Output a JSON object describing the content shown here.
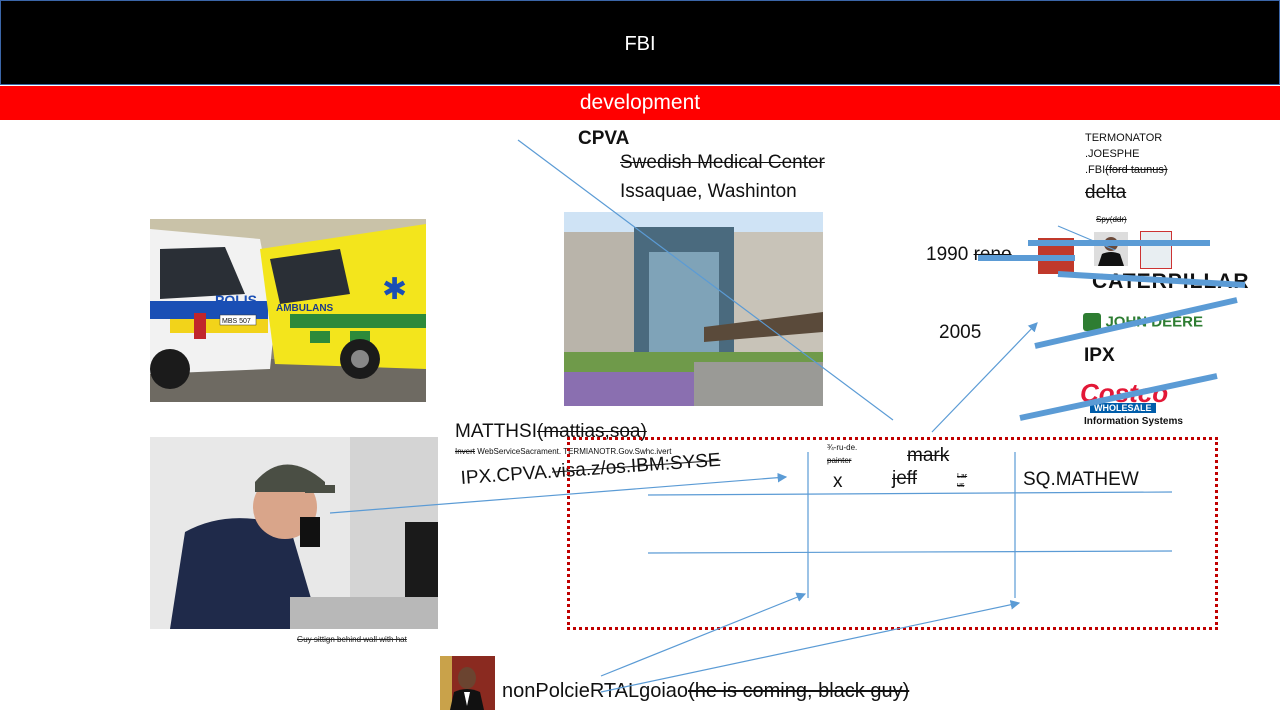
{
  "header": {
    "title": "FBI"
  },
  "subheader": {
    "title": "development"
  },
  "hospital": {
    "cpva_label": "CPVA",
    "name": "Swedish Medical Center",
    "location": "Issaquae, Washinton"
  },
  "photos": {
    "police_van": {
      "polis_text": "POLIS",
      "ambulans_text": "AMBULANS",
      "plate": "MBS 507"
    },
    "dispatcher": {
      "caption": "Guy sittign behind wall with hat"
    },
    "avatar_label": "nonPolcieRTALgoiao",
    "avatar_strikenote": "(he is coming, black guy)"
  },
  "names": {
    "matthsi": "MATTHSI",
    "matthsi_strike": "(mattias,soa)",
    "invert_strike": "Invert",
    "services_line": " WebServiceSacrament. TERMIANOTR.Gov.Swhc.ivert",
    "ipx_line_plain": "IPX.CPVA.",
    "ipx_line_strike": "visa.z/os.IBM:SYSE"
  },
  "right_panel": {
    "termonator": "TERMONATOR",
    "joesphe": ".JOESPHE",
    "fbi": ".FBI",
    "ford": "(ford taunus)",
    "delta": "delta",
    "spy": "Spy(ddr)",
    "year_1990": "1990",
    "year_1990_strike": "reno",
    "year_2005": "2005",
    "caterpillar": "CATERPILLAR",
    "john_deere": "JOHN DEERE",
    "ipx": "IPX",
    "costco": "Costco",
    "wholesale": "WHOLESALE",
    "info_systems": "Information Systems"
  },
  "grid": {
    "small_note": "¾-ru-de.",
    "painter": "painter",
    "x": "x",
    "mark": "mark",
    "jeff": "jeff",
    "tiny": "Lar\nus",
    "sq_mathew": "SQ.MATHEW"
  }
}
